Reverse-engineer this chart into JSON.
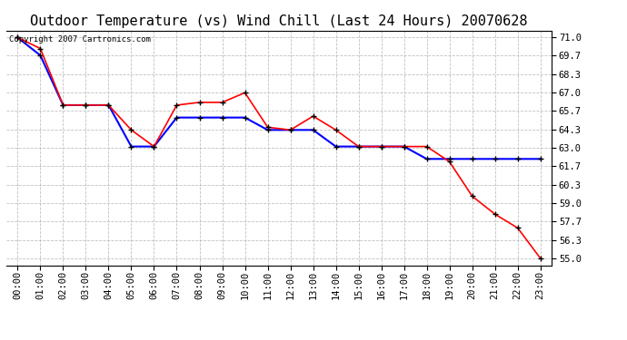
{
  "title": "Outdoor Temperature (vs) Wind Chill (Last 24 Hours) 20070628",
  "copyright_text": "Copyright 2007 Cartronics.com",
  "x_labels": [
    "00:00",
    "01:00",
    "02:00",
    "03:00",
    "04:00",
    "05:00",
    "06:00",
    "07:00",
    "08:00",
    "09:00",
    "10:00",
    "11:00",
    "12:00",
    "13:00",
    "14:00",
    "15:00",
    "16:00",
    "17:00",
    "18:00",
    "19:00",
    "20:00",
    "21:00",
    "22:00",
    "23:00"
  ],
  "temp_red": [
    71.0,
    70.2,
    66.1,
    66.1,
    66.1,
    64.3,
    63.1,
    66.1,
    66.3,
    66.3,
    67.0,
    64.5,
    64.3,
    65.3,
    64.3,
    63.1,
    63.1,
    63.1,
    63.1,
    62.0,
    59.5,
    58.2,
    57.2,
    55.0
  ],
  "wind_chill_blue": [
    71.0,
    69.7,
    66.1,
    66.1,
    66.1,
    63.1,
    63.1,
    65.2,
    65.2,
    65.2,
    65.2,
    64.3,
    64.3,
    64.3,
    63.1,
    63.1,
    63.1,
    63.1,
    62.2,
    62.2,
    62.2,
    62.2,
    62.2,
    62.2
  ],
  "ylim_min": 54.5,
  "ylim_max": 71.5,
  "yticks": [
    55.0,
    56.3,
    57.7,
    59.0,
    60.3,
    61.7,
    63.0,
    64.3,
    65.7,
    67.0,
    68.3,
    69.7,
    71.0
  ],
  "red_color": "#ff0000",
  "blue_color": "#0000ff",
  "marker_color": "#000000",
  "bg_color": "#ffffff",
  "grid_color": "#b0b0b0",
  "title_fontsize": 11,
  "tick_fontsize": 7.5,
  "copyright_fontsize": 6.5
}
